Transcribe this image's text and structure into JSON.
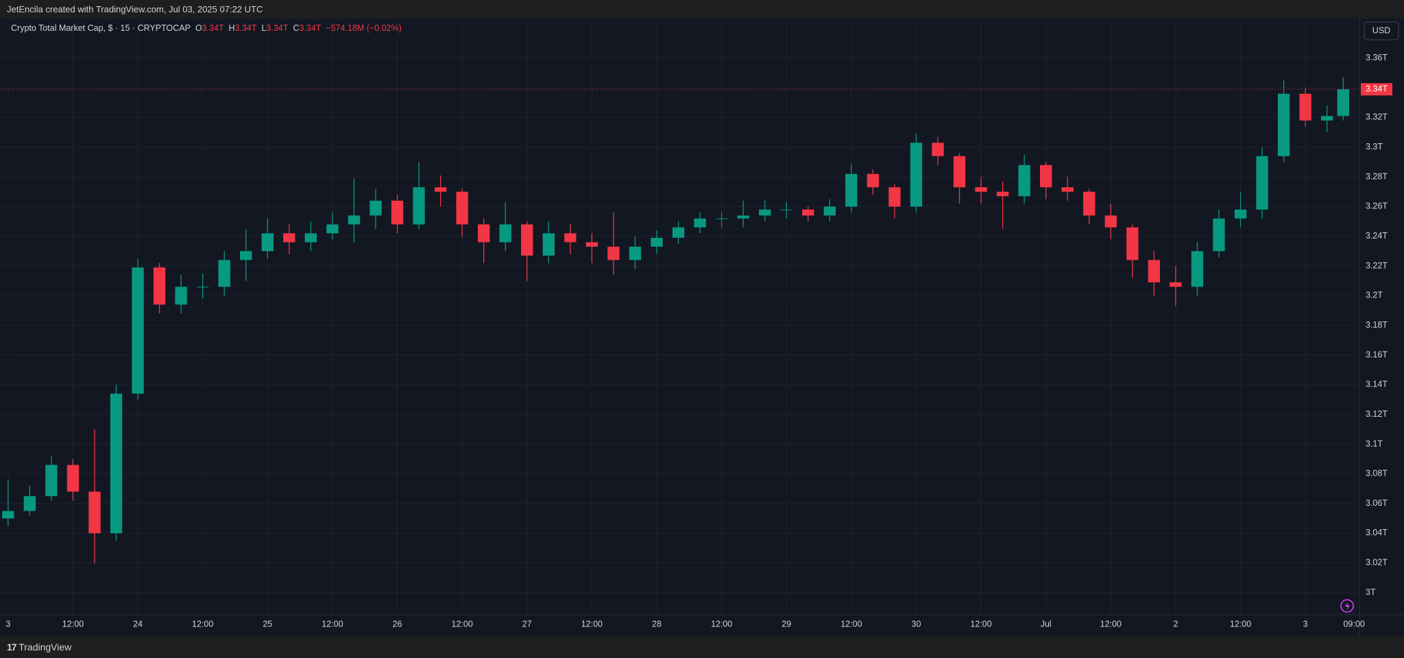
{
  "header": "JetEncila created with TradingView.com, Jul 03, 2025 07:22 UTC",
  "footer": "TradingView",
  "currency_button": "USD",
  "legend": {
    "title": "Crypto Total Market Cap, $ · 15 · CRYPTOCAP",
    "o_key": "O",
    "o": "3.34T",
    "h_key": "H",
    "h": "3.34T",
    "l_key": "L",
    "l": "3.34T",
    "c_key": "C",
    "c": "3.34T",
    "change": "−574.18M (−0.02%)"
  },
  "chart_data": {
    "type": "candlestick",
    "up_color": "#089981",
    "down_color": "#f23645",
    "grid": true,
    "last_price_label": "3.34T",
    "x": [
      0,
      4,
      8,
      12,
      16,
      20,
      24,
      28,
      32,
      36,
      40,
      44,
      48,
      52,
      56,
      60,
      64,
      68,
      72,
      76,
      80,
      84,
      88,
      92,
      96,
      100,
      104,
      108,
      112,
      116,
      120,
      124,
      128,
      132,
      136,
      140,
      144,
      148,
      152,
      156,
      160,
      164,
      168,
      172,
      176,
      180,
      184,
      188,
      192,
      196,
      200,
      204,
      208,
      212,
      216,
      220,
      224,
      228,
      232,
      236,
      240,
      244,
      247
    ],
    "open": [
      3.05,
      3.055,
      3.065,
      3.086,
      3.068,
      3.04,
      3.134,
      3.219,
      3.194,
      3.206,
      3.206,
      3.224,
      3.23,
      3.242,
      3.236,
      3.242,
      3.248,
      3.254,
      3.264,
      3.248,
      3.273,
      3.27,
      3.248,
      3.236,
      3.248,
      3.227,
      3.242,
      3.236,
      3.233,
      3.224,
      3.233,
      3.239,
      3.246,
      3.252,
      3.252,
      3.254,
      3.258,
      3.258,
      3.254,
      3.26,
      3.282,
      3.273,
      3.26,
      3.303,
      3.294,
      3.273,
      3.27,
      3.267,
      3.288,
      3.273,
      3.27,
      3.254,
      3.246,
      3.224,
      3.209,
      3.206,
      3.23,
      3.252,
      3.258,
      3.294,
      3.336,
      3.318,
      3.321
    ],
    "high": [
      3.076,
      3.072,
      3.092,
      3.09,
      3.11,
      3.14,
      3.225,
      3.222,
      3.214,
      3.215,
      3.23,
      3.245,
      3.252,
      3.248,
      3.25,
      3.256,
      3.279,
      3.272,
      3.268,
      3.29,
      3.281,
      3.272,
      3.252,
      3.263,
      3.25,
      3.25,
      3.248,
      3.242,
      3.256,
      3.24,
      3.244,
      3.25,
      3.256,
      3.256,
      3.264,
      3.264,
      3.263,
      3.26,
      3.265,
      3.289,
      3.285,
      3.275,
      3.309,
      3.307,
      3.296,
      3.28,
      3.277,
      3.295,
      3.29,
      3.28,
      3.272,
      3.262,
      3.248,
      3.23,
      3.22,
      3.236,
      3.258,
      3.27,
      3.3,
      3.345,
      3.34,
      3.328,
      3.347
    ],
    "low": [
      3.045,
      3.052,
      3.062,
      3.062,
      3.02,
      3.035,
      3.13,
      3.188,
      3.188,
      3.198,
      3.2,
      3.21,
      3.225,
      3.228,
      3.23,
      3.238,
      3.236,
      3.245,
      3.242,
      3.245,
      3.26,
      3.24,
      3.222,
      3.23,
      3.21,
      3.222,
      3.228,
      3.222,
      3.214,
      3.218,
      3.228,
      3.235,
      3.242,
      3.246,
      3.246,
      3.25,
      3.252,
      3.25,
      3.25,
      3.256,
      3.268,
      3.252,
      3.256,
      3.288,
      3.262,
      3.262,
      3.245,
      3.262,
      3.265,
      3.264,
      3.248,
      3.238,
      3.212,
      3.2,
      3.193,
      3.2,
      3.226,
      3.246,
      3.252,
      3.29,
      3.314,
      3.31,
      3.318
    ],
    "close": [
      3.055,
      3.065,
      3.086,
      3.068,
      3.04,
      3.134,
      3.219,
      3.194,
      3.206,
      3.206,
      3.224,
      3.23,
      3.242,
      3.236,
      3.242,
      3.248,
      3.254,
      3.264,
      3.248,
      3.273,
      3.27,
      3.248,
      3.236,
      3.248,
      3.227,
      3.242,
      3.236,
      3.233,
      3.224,
      3.233,
      3.239,
      3.246,
      3.252,
      3.252,
      3.254,
      3.258,
      3.258,
      3.254,
      3.26,
      3.282,
      3.273,
      3.26,
      3.303,
      3.294,
      3.273,
      3.27,
      3.267,
      3.288,
      3.273,
      3.27,
      3.254,
      3.246,
      3.224,
      3.209,
      3.206,
      3.23,
      3.252,
      3.258,
      3.294,
      3.336,
      3.318,
      3.321,
      3.339
    ],
    "xlim": [
      -1.5,
      250
    ],
    "xticks": [
      {
        "value": 0,
        "label": "3"
      },
      {
        "value": 12,
        "label": "12:00"
      },
      {
        "value": 24,
        "label": "24"
      },
      {
        "value": 36,
        "label": "12:00"
      },
      {
        "value": 48,
        "label": "25"
      },
      {
        "value": 60,
        "label": "12:00"
      },
      {
        "value": 72,
        "label": "26"
      },
      {
        "value": 84,
        "label": "12:00"
      },
      {
        "value": 96,
        "label": "27"
      },
      {
        "value": 108,
        "label": "12:00"
      },
      {
        "value": 120,
        "label": "28"
      },
      {
        "value": 132,
        "label": "12:00"
      },
      {
        "value": 144,
        "label": "29"
      },
      {
        "value": 156,
        "label": "12:00"
      },
      {
        "value": 168,
        "label": "30"
      },
      {
        "value": 180,
        "label": "12:00"
      },
      {
        "value": 192,
        "label": "Jul"
      },
      {
        "value": 204,
        "label": "12:00"
      },
      {
        "value": 216,
        "label": "2"
      },
      {
        "value": 228,
        "label": "12:00"
      },
      {
        "value": 240,
        "label": "3"
      },
      {
        "value": 249,
        "label": "09:00"
      }
    ],
    "ylim": [
      2.9855,
      3.3859
    ],
    "yticks": [
      {
        "value": 3,
        "label": "3T"
      },
      {
        "value": 3.02,
        "label": "3.02T"
      },
      {
        "value": 3.04,
        "label": "3.04T"
      },
      {
        "value": 3.06,
        "label": "3.06T"
      },
      {
        "value": 3.08,
        "label": "3.08T"
      },
      {
        "value": 3.1,
        "label": "3.1T"
      },
      {
        "value": 3.12,
        "label": "3.12T"
      },
      {
        "value": 3.14,
        "label": "3.14T"
      },
      {
        "value": 3.16,
        "label": "3.16T"
      },
      {
        "value": 3.18,
        "label": "3.18T"
      },
      {
        "value": 3.2,
        "label": "3.2T"
      },
      {
        "value": 3.22,
        "label": "3.22T"
      },
      {
        "value": 3.24,
        "label": "3.24T"
      },
      {
        "value": 3.26,
        "label": "3.26T"
      },
      {
        "value": 3.28,
        "label": "3.28T"
      },
      {
        "value": 3.3,
        "label": "3.3T"
      },
      {
        "value": 3.32,
        "label": "3.32T"
      },
      {
        "value": 3.34,
        "label": "3.34T"
      },
      {
        "value": 3.36,
        "label": "3.36T"
      }
    ]
  }
}
